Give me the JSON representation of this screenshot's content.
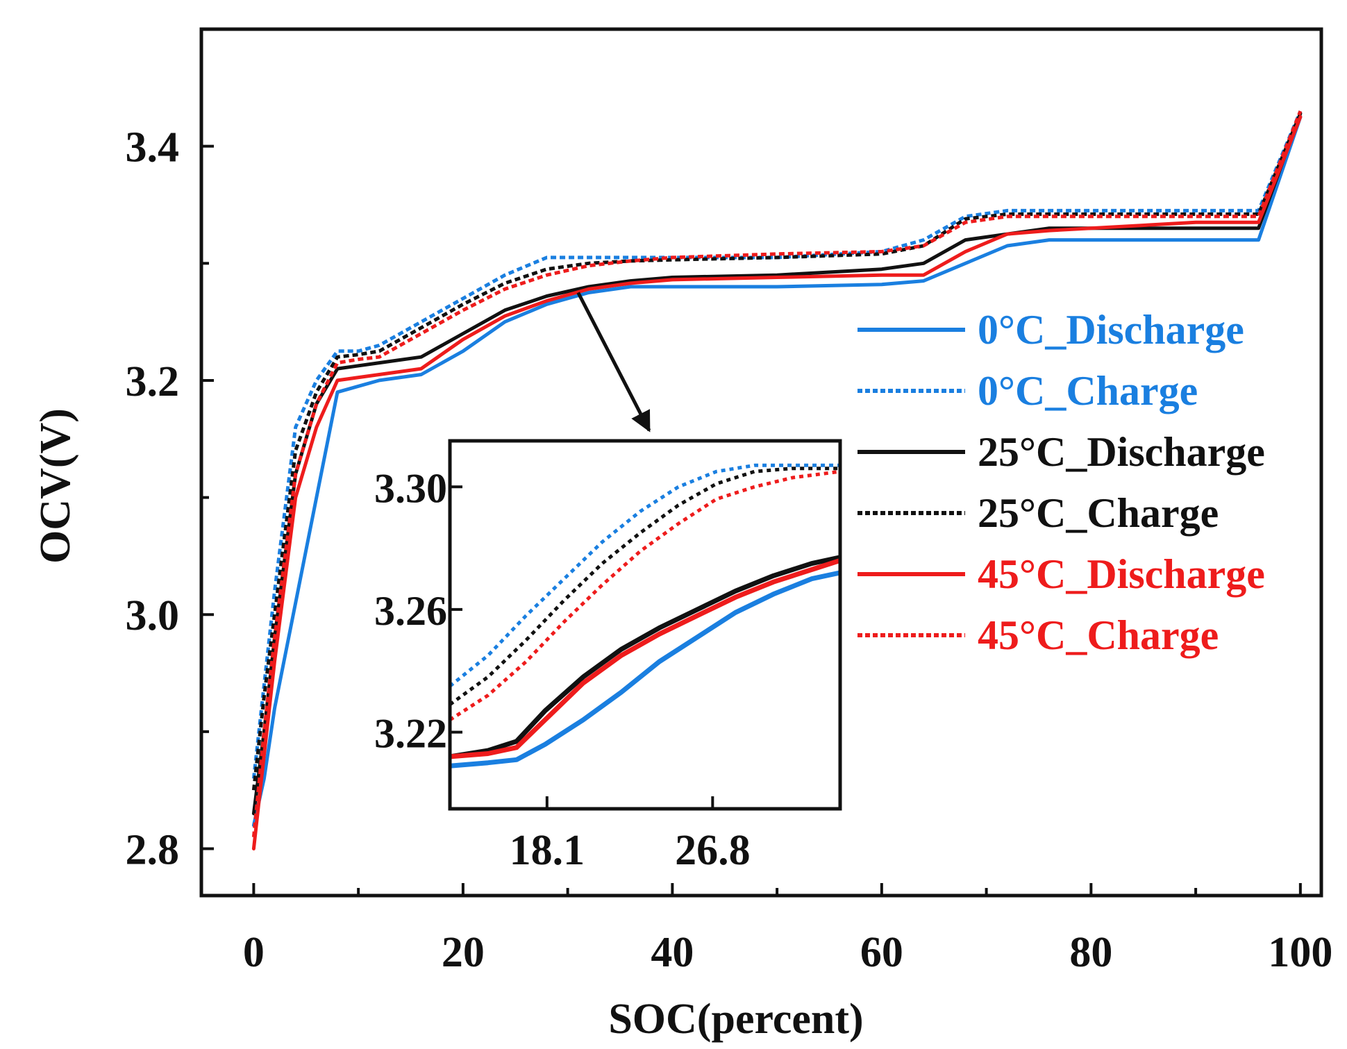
{
  "chart_data": {
    "type": "line",
    "title": "",
    "xlabel": "SOC(percent)",
    "ylabel": "OCV(V)",
    "xlim": [
      -5,
      102
    ],
    "ylim": [
      2.76,
      3.5
    ],
    "x_ticks": [
      0,
      20,
      40,
      60,
      80,
      100
    ],
    "x_tick_labels": [
      "0",
      "20",
      "40",
      "60",
      "80",
      "100"
    ],
    "y_ticks": [
      2.8,
      3.0,
      3.2,
      3.4
    ],
    "y_tick_labels": [
      "2.8",
      "3.0",
      "3.2",
      "3.4"
    ],
    "grid": false,
    "legend_position": "right",
    "series": [
      {
        "name": "0°C_Discharge",
        "color": "#1a7fe0",
        "style": "solid",
        "x": [
          0,
          1,
          2,
          4,
          6,
          8,
          12,
          16,
          20,
          24,
          28,
          32,
          36,
          40,
          50,
          60,
          64,
          68,
          72,
          76,
          80,
          90,
          96,
          100
        ],
        "y": [
          2.82,
          2.86,
          2.92,
          3.01,
          3.1,
          3.19,
          3.2,
          3.205,
          3.225,
          3.25,
          3.265,
          3.275,
          3.28,
          3.28,
          3.28,
          3.282,
          3.285,
          3.3,
          3.315,
          3.32,
          3.32,
          3.32,
          3.32,
          3.425
        ]
      },
      {
        "name": "0°C_Charge",
        "color": "#1a7fe0",
        "style": "dotted",
        "x": [
          0,
          1,
          2,
          4,
          6,
          8,
          10,
          12,
          16,
          20,
          24,
          28,
          30,
          34,
          40,
          50,
          60,
          64,
          68,
          72,
          80,
          90,
          96,
          100
        ],
        "y": [
          2.86,
          2.94,
          3.02,
          3.16,
          3.2,
          3.225,
          3.225,
          3.23,
          3.25,
          3.27,
          3.29,
          3.305,
          3.305,
          3.305,
          3.305,
          3.305,
          3.31,
          3.32,
          3.34,
          3.345,
          3.345,
          3.345,
          3.345,
          3.43
        ]
      },
      {
        "name": "25°C_Discharge",
        "color": "#111111",
        "style": "solid",
        "x": [
          0,
          1,
          2,
          4,
          6,
          8,
          12,
          16,
          20,
          24,
          28,
          32,
          36,
          40,
          50,
          60,
          64,
          68,
          72,
          76,
          80,
          90,
          96,
          100
        ],
        "y": [
          2.83,
          2.9,
          2.98,
          3.12,
          3.18,
          3.21,
          3.215,
          3.22,
          3.24,
          3.26,
          3.272,
          3.28,
          3.285,
          3.288,
          3.29,
          3.295,
          3.3,
          3.32,
          3.325,
          3.33,
          3.33,
          3.33,
          3.33,
          3.428
        ]
      },
      {
        "name": "25°C_Charge",
        "color": "#111111",
        "style": "dotted",
        "x": [
          0,
          1,
          2,
          4,
          6,
          8,
          10,
          12,
          16,
          20,
          24,
          28,
          32,
          36,
          40,
          50,
          60,
          64,
          68,
          72,
          80,
          90,
          96,
          100
        ],
        "y": [
          2.85,
          2.93,
          3.0,
          3.14,
          3.19,
          3.22,
          3.222,
          3.225,
          3.245,
          3.265,
          3.283,
          3.295,
          3.3,
          3.302,
          3.303,
          3.305,
          3.308,
          3.315,
          3.338,
          3.342,
          3.342,
          3.342,
          3.342,
          3.428
        ]
      },
      {
        "name": "45°C_Discharge",
        "color": "#ee1c1c",
        "style": "solid",
        "x": [
          0,
          1,
          2,
          4,
          6,
          8,
          12,
          16,
          20,
          24,
          28,
          32,
          36,
          40,
          50,
          60,
          64,
          68,
          72,
          76,
          80,
          90,
          96,
          100
        ],
        "y": [
          2.8,
          2.88,
          2.96,
          3.1,
          3.16,
          3.2,
          3.205,
          3.21,
          3.235,
          3.255,
          3.268,
          3.278,
          3.283,
          3.286,
          3.288,
          3.29,
          3.29,
          3.31,
          3.325,
          3.328,
          3.33,
          3.335,
          3.335,
          3.425
        ]
      },
      {
        "name": "45°C_Charge",
        "color": "#ee1c1c",
        "style": "dotted",
        "x": [
          0,
          1,
          2,
          4,
          6,
          8,
          10,
          12,
          16,
          20,
          24,
          28,
          32,
          36,
          40,
          50,
          60,
          64,
          68,
          72,
          80,
          90,
          96,
          100
        ],
        "y": [
          2.81,
          2.9,
          2.98,
          3.12,
          3.18,
          3.215,
          3.218,
          3.22,
          3.24,
          3.26,
          3.278,
          3.29,
          3.298,
          3.302,
          3.305,
          3.308,
          3.31,
          3.315,
          3.335,
          3.34,
          3.34,
          3.34,
          3.34,
          3.43
        ]
      }
    ],
    "inset": {
      "type": "line",
      "xlim": [
        13.0,
        33.5
      ],
      "ylim": [
        3.195,
        3.315
      ],
      "x_ticks": [
        18.1,
        26.8
      ],
      "x_tick_labels": [
        "18.1",
        "26.8"
      ],
      "y_ticks": [
        3.22,
        3.26,
        3.3
      ],
      "y_tick_labels": [
        "3.22",
        "3.26",
        "3.30"
      ],
      "series": [
        {
          "name": "0°C_Discharge",
          "color": "#1a7fe0",
          "style": "solid",
          "x": [
            13,
            15,
            16.5,
            18,
            20,
            22,
            24,
            26,
            28,
            30,
            32,
            33.5
          ],
          "y": [
            3.209,
            3.21,
            3.211,
            3.216,
            3.224,
            3.233,
            3.243,
            3.251,
            3.259,
            3.265,
            3.27,
            3.272
          ]
        },
        {
          "name": "0°C_Charge",
          "color": "#1a7fe0",
          "style": "dotted",
          "x": [
            13,
            15,
            17,
            19,
            21,
            23,
            25,
            27,
            29,
            31,
            33.5
          ],
          "y": [
            3.235,
            3.245,
            3.258,
            3.27,
            3.282,
            3.292,
            3.3,
            3.305,
            3.307,
            3.307,
            3.307
          ]
        },
        {
          "name": "25°C_Discharge",
          "color": "#111111",
          "style": "solid",
          "x": [
            13,
            15,
            16.5,
            18,
            20,
            22,
            24,
            26,
            28,
            30,
            32,
            33.5
          ],
          "y": [
            3.212,
            3.214,
            3.217,
            3.227,
            3.238,
            3.247,
            3.254,
            3.26,
            3.266,
            3.271,
            3.275,
            3.277
          ]
        },
        {
          "name": "25°C_Charge",
          "color": "#111111",
          "style": "dotted",
          "x": [
            13,
            15,
            17,
            19,
            21,
            23,
            25,
            27,
            29,
            31,
            33.5
          ],
          "y": [
            3.229,
            3.238,
            3.25,
            3.263,
            3.275,
            3.285,
            3.294,
            3.301,
            3.305,
            3.306,
            3.306
          ]
        },
        {
          "name": "45°C_Discharge",
          "color": "#ee1c1c",
          "style": "solid",
          "x": [
            13,
            15,
            16.5,
            18,
            20,
            22,
            24,
            26,
            28,
            30,
            32,
            33.5
          ],
          "y": [
            3.212,
            3.213,
            3.215,
            3.224,
            3.236,
            3.245,
            3.252,
            3.258,
            3.264,
            3.269,
            3.273,
            3.276
          ]
        },
        {
          "name": "45°C_Charge",
          "color": "#ee1c1c",
          "style": "dotted",
          "x": [
            13,
            15,
            17,
            19,
            21,
            23,
            25,
            27,
            29,
            31,
            33.5
          ],
          "y": [
            3.224,
            3.232,
            3.243,
            3.256,
            3.268,
            3.279,
            3.288,
            3.296,
            3.3,
            3.303,
            3.305
          ]
        }
      ]
    },
    "annotation": {
      "type": "arrow",
      "from_data": [
        31,
        3.275
      ],
      "to_inset_top": true
    }
  }
}
